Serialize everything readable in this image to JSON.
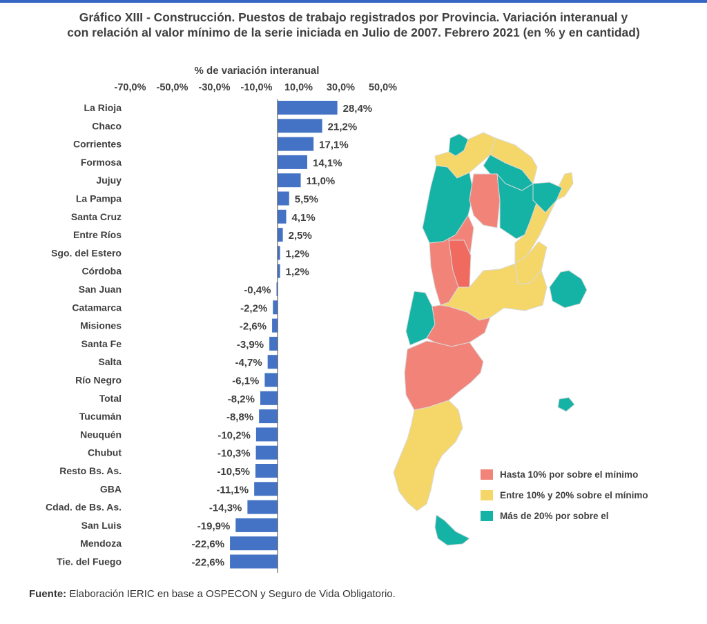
{
  "title": {
    "line1": "Gráfico XIII - Construcción. Puestos de trabajo registrados por Provincia. Variación interanual y",
    "line2": "con relación al valor mínimo de la serie iniciada en Julio de 2007. Febrero 2021 (en % y en cantidad)"
  },
  "chart_data": {
    "type": "bar",
    "orientation": "horizontal",
    "axis_title": "% de variación interanual",
    "x_ticks": [
      "-70,0%",
      "-50,0%",
      "-30,0%",
      "-10,0%",
      "10,0%",
      "30,0%",
      "50,0%"
    ],
    "xlim": [
      -70,
      50
    ],
    "categories": [
      "La Rioja",
      "Chaco",
      "Corrientes",
      "Formosa",
      "Jujuy",
      "La Pampa",
      "Santa Cruz",
      "Entre Ríos",
      "Sgo. del Estero",
      "Córdoba",
      "San Juan",
      "Catamarca",
      "Misiones",
      "Santa Fe",
      "Salta",
      "Río Negro",
      "Total",
      "Tucumán",
      "Neuquén",
      "Chubut",
      "Resto Bs. As.",
      "GBA",
      "Cdad. de Bs. As.",
      "San Luis",
      "Mendoza",
      "Tie. del Fuego"
    ],
    "values": [
      28.4,
      21.2,
      17.1,
      14.1,
      11.0,
      5.5,
      4.1,
      2.5,
      1.2,
      1.2,
      -0.4,
      -2.2,
      -2.6,
      -3.9,
      -4.7,
      -6.1,
      -8.2,
      -8.8,
      -10.2,
      -10.3,
      -10.5,
      -11.1,
      -14.3,
      -19.9,
      -22.6,
      -22.6
    ],
    "labels": [
      "28,4%",
      "21,2%",
      "17,1%",
      "14,1%",
      "11,0%",
      "5,5%",
      "4,1%",
      "2,5%",
      "1,2%",
      "1,2%",
      "-0,4%",
      "-2,2%",
      "-2,6%",
      "-3,9%",
      "-4,7%",
      "-6,1%",
      "-8,2%",
      "-8,8%",
      "-10,2%",
      "-10,3%",
      "-10,5%",
      "-11,1%",
      "-14,3%",
      "-19,9%",
      "-22,6%",
      "-22,6%"
    ],
    "bar_color": "#4472c4"
  },
  "map_legend": [
    {
      "label": "Hasta 10% por sobre el mínimo",
      "color": "#f28379"
    },
    {
      "label": "Entre 10% y 20% sobre el mínimo",
      "color": "#f5d769"
    },
    {
      "label": "Más de 20% por sobre el",
      "color": "#14b3a6"
    }
  ],
  "source": {
    "prefix": "Fuente:",
    "text": " Elaboración IERIC en base a OSPECON y Seguro de Vida Obligatorio."
  }
}
